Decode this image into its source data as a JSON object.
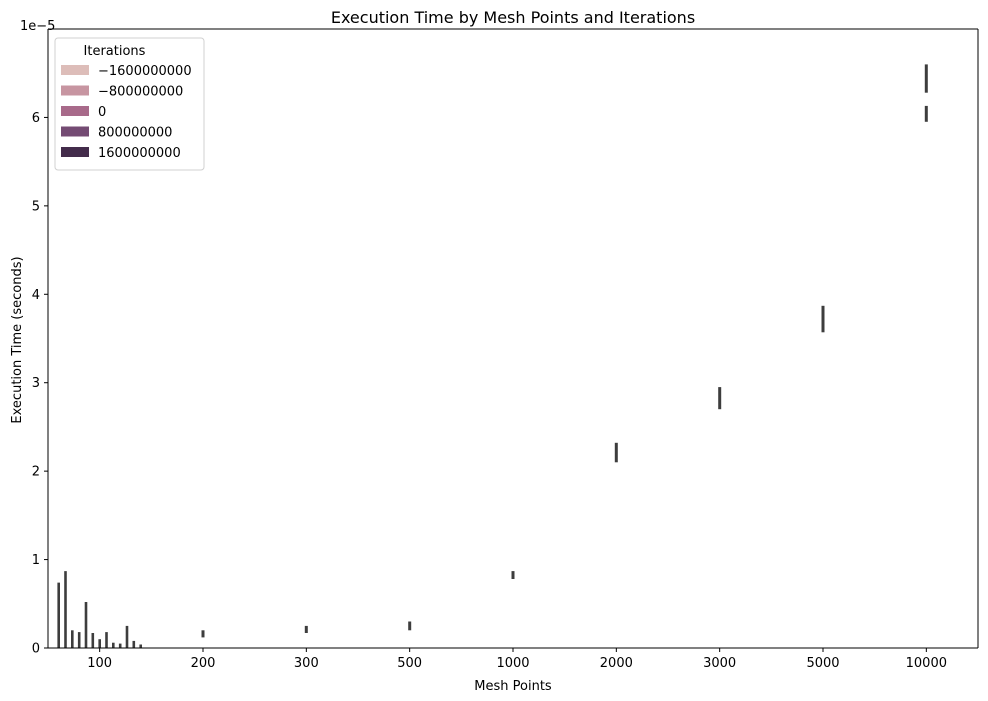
{
  "chart_data": {
    "type": "bar",
    "title": "Execution Time by Mesh Points and Iterations",
    "xlabel": "Mesh Points",
    "ylabel": "Execution Time (seconds)",
    "y_offset_label": "1e−5",
    "y_scale_exponent": -5,
    "ylim": [
      0,
      7e-05
    ],
    "yticks": [
      0,
      1e-05,
      2e-05,
      3e-05,
      4e-05,
      5e-05,
      6e-05
    ],
    "ytick_labels": [
      "0",
      "1",
      "2",
      "3",
      "4",
      "5",
      "6"
    ],
    "categories": [
      "100",
      "200",
      "300",
      "500",
      "1000",
      "2000",
      "3000",
      "5000",
      "10000"
    ],
    "grid": false,
    "legend": {
      "title": "Iterations",
      "placement": "upper-left",
      "entries": [
        {
          "label": "−1600000000",
          "color": "#ddbdb9"
        },
        {
          "label": "−800000000",
          "color": "#c795a1"
        },
        {
          "label": "0",
          "color": "#a86a8a"
        },
        {
          "label": "800000000",
          "color": "#744b73"
        },
        {
          "label": "1600000000",
          "color": "#432c4b"
        }
      ]
    },
    "error_color": "#3d3d3d",
    "error_bars": [
      {
        "category": "100",
        "ymin": 0.0,
        "ymax": 7.4e-06
      },
      {
        "category": "100",
        "ymin": 0.0,
        "ymax": 8.7e-06
      },
      {
        "category": "100",
        "ymin": 0.0,
        "ymax": 2e-06
      },
      {
        "category": "100",
        "ymin": 0.0,
        "ymax": 1.8e-06
      },
      {
        "category": "100",
        "ymin": 0.0,
        "ymax": 5.2e-06
      },
      {
        "category": "100",
        "ymin": 0.0,
        "ymax": 1.7e-06
      },
      {
        "category": "100",
        "ymin": 0.0,
        "ymax": 1e-06
      },
      {
        "category": "100",
        "ymin": 0.0,
        "ymax": 1.8e-06
      },
      {
        "category": "100",
        "ymin": 0.0,
        "ymax": 6e-07
      },
      {
        "category": "100",
        "ymin": 0.0,
        "ymax": 5e-07
      },
      {
        "category": "100",
        "ymin": 0.0,
        "ymax": 2.5e-06
      },
      {
        "category": "100",
        "ymin": 0.0,
        "ymax": 8e-07
      },
      {
        "category": "100",
        "ymin": 0.0,
        "ymax": 4e-07
      },
      {
        "category": "200",
        "ymin": 1.2e-06,
        "ymax": 2e-06
      },
      {
        "category": "300",
        "ymin": 1.7e-06,
        "ymax": 2.5e-06
      },
      {
        "category": "500",
        "ymin": 2e-06,
        "ymax": 3e-06
      },
      {
        "category": "1000",
        "ymin": 7.8e-06,
        "ymax": 8.7e-06
      },
      {
        "category": "2000",
        "ymin": 2.1e-05,
        "ymax": 2.32e-05
      },
      {
        "category": "3000",
        "ymin": 2.7e-05,
        "ymax": 2.95e-05
      },
      {
        "category": "5000",
        "ymin": 3.57e-05,
        "ymax": 3.87e-05
      },
      {
        "category": "10000",
        "ymin": 6.28e-05,
        "ymax": 6.6e-05
      },
      {
        "category": "10000",
        "ymin": 5.95e-05,
        "ymax": 6.13e-05
      }
    ]
  }
}
